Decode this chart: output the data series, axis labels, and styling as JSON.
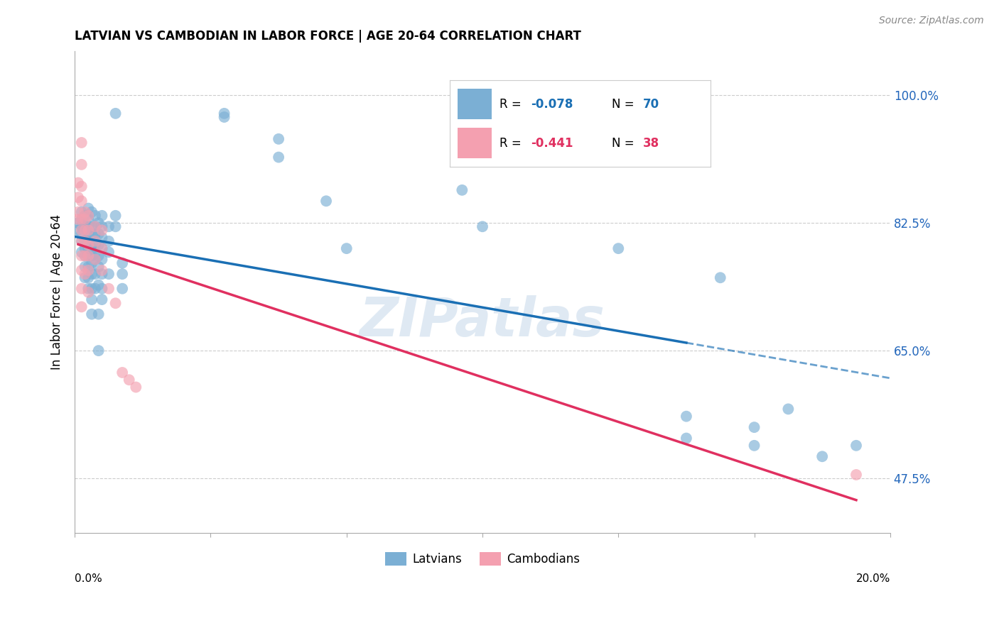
{
  "title": "LATVIAN VS CAMBODIAN IN LABOR FORCE | AGE 20-64 CORRELATION CHART",
  "source": "Source: ZipAtlas.com",
  "ylabel": "In Labor Force | Age 20-64",
  "ytick_vals": [
    0.475,
    0.65,
    0.825,
    1.0
  ],
  "ytick_labels": [
    "47.5%",
    "65.0%",
    "82.5%",
    "100.0%"
  ],
  "latvian_color": "#7bafd4",
  "cambodian_color": "#f4a0b0",
  "trendline_latvian_color": "#1a6fb4",
  "trendline_cambodian_color": "#e03060",
  "watermark": "ZIPatlas",
  "latvian_points": [
    [
      0.0005,
      0.825
    ],
    [
      0.0005,
      0.815
    ],
    [
      0.001,
      0.84
    ],
    [
      0.001,
      0.83
    ],
    [
      0.001,
      0.82
    ],
    [
      0.001,
      0.81
    ],
    [
      0.001,
      0.8
    ],
    [
      0.001,
      0.785
    ],
    [
      0.0015,
      0.835
    ],
    [
      0.0015,
      0.82
    ],
    [
      0.0015,
      0.815
    ],
    [
      0.0015,
      0.8
    ],
    [
      0.0015,
      0.79
    ],
    [
      0.0015,
      0.78
    ],
    [
      0.0015,
      0.765
    ],
    [
      0.0015,
      0.75
    ],
    [
      0.002,
      0.845
    ],
    [
      0.002,
      0.83
    ],
    [
      0.002,
      0.82
    ],
    [
      0.002,
      0.81
    ],
    [
      0.002,
      0.8
    ],
    [
      0.002,
      0.79
    ],
    [
      0.002,
      0.78
    ],
    [
      0.002,
      0.765
    ],
    [
      0.002,
      0.75
    ],
    [
      0.002,
      0.735
    ],
    [
      0.0025,
      0.84
    ],
    [
      0.0025,
      0.82
    ],
    [
      0.0025,
      0.81
    ],
    [
      0.0025,
      0.79
    ],
    [
      0.0025,
      0.78
    ],
    [
      0.0025,
      0.77
    ],
    [
      0.0025,
      0.755
    ],
    [
      0.0025,
      0.735
    ],
    [
      0.0025,
      0.72
    ],
    [
      0.0025,
      0.7
    ],
    [
      0.003,
      0.835
    ],
    [
      0.003,
      0.82
    ],
    [
      0.003,
      0.81
    ],
    [
      0.003,
      0.795
    ],
    [
      0.003,
      0.785
    ],
    [
      0.003,
      0.775
    ],
    [
      0.003,
      0.755
    ],
    [
      0.003,
      0.735
    ],
    [
      0.0035,
      0.825
    ],
    [
      0.0035,
      0.81
    ],
    [
      0.0035,
      0.795
    ],
    [
      0.0035,
      0.78
    ],
    [
      0.0035,
      0.765
    ],
    [
      0.0035,
      0.74
    ],
    [
      0.0035,
      0.7
    ],
    [
      0.0035,
      0.65
    ],
    [
      0.004,
      0.835
    ],
    [
      0.004,
      0.82
    ],
    [
      0.004,
      0.805
    ],
    [
      0.004,
      0.79
    ],
    [
      0.004,
      0.775
    ],
    [
      0.004,
      0.755
    ],
    [
      0.004,
      0.735
    ],
    [
      0.004,
      0.72
    ],
    [
      0.005,
      0.82
    ],
    [
      0.005,
      0.8
    ],
    [
      0.005,
      0.785
    ],
    [
      0.005,
      0.755
    ],
    [
      0.006,
      0.975
    ],
    [
      0.006,
      0.835
    ],
    [
      0.006,
      0.82
    ],
    [
      0.007,
      0.77
    ],
    [
      0.007,
      0.755
    ],
    [
      0.007,
      0.735
    ],
    [
      0.022,
      0.975
    ],
    [
      0.022,
      0.97
    ],
    [
      0.03,
      0.94
    ],
    [
      0.03,
      0.915
    ],
    [
      0.037,
      0.855
    ],
    [
      0.04,
      0.79
    ],
    [
      0.057,
      0.87
    ],
    [
      0.06,
      0.82
    ],
    [
      0.068,
      0.98
    ],
    [
      0.08,
      0.79
    ],
    [
      0.09,
      0.56
    ],
    [
      0.09,
      0.53
    ],
    [
      0.095,
      0.75
    ],
    [
      0.1,
      0.545
    ],
    [
      0.1,
      0.52
    ],
    [
      0.105,
      0.57
    ],
    [
      0.11,
      0.505
    ],
    [
      0.115,
      0.52
    ]
  ],
  "cambodian_points": [
    [
      0.0005,
      0.88
    ],
    [
      0.0005,
      0.86
    ],
    [
      0.0005,
      0.84
    ],
    [
      0.0005,
      0.83
    ],
    [
      0.001,
      0.935
    ],
    [
      0.001,
      0.905
    ],
    [
      0.001,
      0.875
    ],
    [
      0.001,
      0.855
    ],
    [
      0.001,
      0.83
    ],
    [
      0.001,
      0.815
    ],
    [
      0.001,
      0.8
    ],
    [
      0.001,
      0.78
    ],
    [
      0.001,
      0.76
    ],
    [
      0.001,
      0.735
    ],
    [
      0.001,
      0.71
    ],
    [
      0.0015,
      0.84
    ],
    [
      0.0015,
      0.83
    ],
    [
      0.0015,
      0.815
    ],
    [
      0.0015,
      0.8
    ],
    [
      0.0015,
      0.78
    ],
    [
      0.0015,
      0.755
    ],
    [
      0.002,
      0.835
    ],
    [
      0.002,
      0.815
    ],
    [
      0.002,
      0.795
    ],
    [
      0.002,
      0.78
    ],
    [
      0.002,
      0.76
    ],
    [
      0.002,
      0.73
    ],
    [
      0.003,
      0.82
    ],
    [
      0.003,
      0.8
    ],
    [
      0.003,
      0.775
    ],
    [
      0.004,
      0.815
    ],
    [
      0.004,
      0.79
    ],
    [
      0.004,
      0.76
    ],
    [
      0.005,
      0.735
    ],
    [
      0.006,
      0.715
    ],
    [
      0.007,
      0.62
    ],
    [
      0.008,
      0.61
    ],
    [
      0.009,
      0.6
    ],
    [
      0.115,
      0.48
    ]
  ],
  "xlim": [
    0.0,
    0.12
  ],
  "ylim": [
    0.4,
    1.06
  ],
  "trendline_lv_x0": 0.0,
  "trendline_lv_x_solid_end": 0.09,
  "trendline_lv_x_end": 0.12,
  "background_color": "#ffffff",
  "grid_color": "#cccccc"
}
